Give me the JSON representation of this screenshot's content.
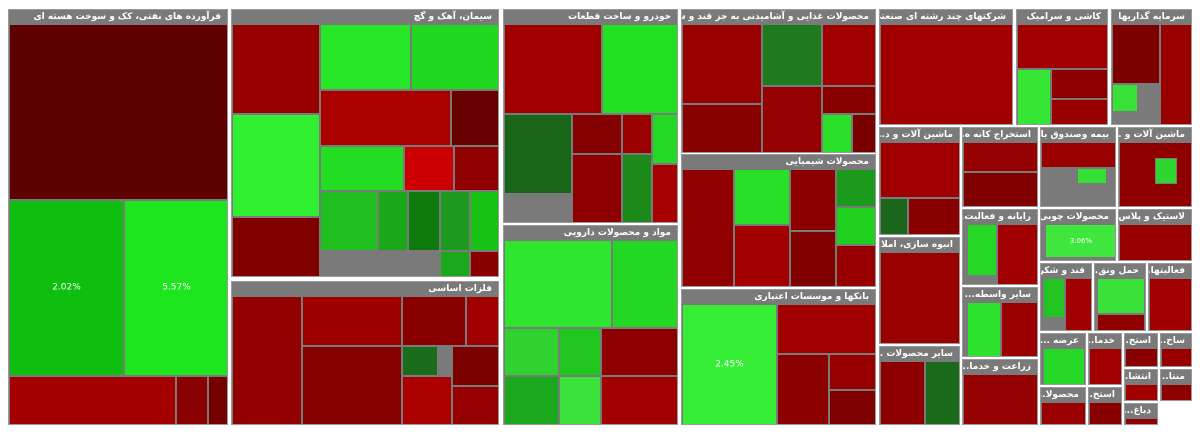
{
  "chart_data": {
    "type": "treemap",
    "sectors": [
      {
        "id": "s1",
        "name": "فرآورده های نفتی، کک و سوخت هسته ای",
        "tiles": [
          {
            "id": "t1",
            "change": "",
            "color": "#5e0000"
          },
          {
            "id": "t2",
            "change": "2.02%",
            "color": "#0fbf0f"
          },
          {
            "id": "t3",
            "change": "5.57%",
            "color": "#1ee61e"
          },
          {
            "id": "t4",
            "change": "",
            "color": "#a50000"
          },
          {
            "id": "t5",
            "change": "",
            "color": "#8b0000"
          },
          {
            "id": "t6",
            "change": "",
            "color": "#750000"
          }
        ]
      },
      {
        "id": "s2",
        "name": "سیمان، آهک و گچ",
        "tiles": [
          {
            "id": "t1",
            "change": "",
            "color": "#980000"
          },
          {
            "id": "t2",
            "change": "",
            "color": "#28e628"
          },
          {
            "id": "t3",
            "change": "",
            "color": "#20d820"
          },
          {
            "id": "t4",
            "change": "",
            "color": "#30ee30"
          },
          {
            "id": "t5",
            "change": "",
            "color": "#aa0000"
          },
          {
            "id": "t6",
            "change": "",
            "color": "#680000"
          },
          {
            "id": "t7",
            "change": "",
            "color": "#22dd22"
          },
          {
            "id": "t8",
            "change": "",
            "color": "#cc0000"
          },
          {
            "id": "t9",
            "change": "",
            "color": "#900000"
          },
          {
            "id": "t10",
            "change": "",
            "color": "#20c020"
          },
          {
            "id": "t11",
            "change": "",
            "color": "#18a818"
          },
          {
            "id": "t12",
            "change": "",
            "color": "#0e7a0e"
          },
          {
            "id": "t13",
            "change": "",
            "color": "#1d9a1d"
          },
          {
            "id": "t14",
            "change": "",
            "color": "#17c217"
          },
          {
            "id": "t15",
            "change": "",
            "color": "#800000"
          },
          {
            "id": "t16",
            "change": "",
            "color": "#1ca81c"
          },
          {
            "id": "t17",
            "change": "",
            "color": "#8a0000"
          }
        ]
      },
      {
        "id": "s3",
        "name": "فلزات اساسی",
        "tiles": [
          {
            "id": "t1",
            "change": "",
            "color": "#920000"
          },
          {
            "id": "t2",
            "change": "",
            "color": "#9e0000"
          },
          {
            "id": "t3",
            "change": "",
            "color": "#8a0000"
          },
          {
            "id": "t4",
            "change": "",
            "color": "#a00000"
          },
          {
            "id": "t5",
            "change": "",
            "color": "#1a6d1a"
          },
          {
            "id": "t6",
            "change": "",
            "color": "#850000"
          },
          {
            "id": "t7",
            "change": "",
            "color": "#aa0000"
          },
          {
            "id": "t8",
            "change": "",
            "color": "#7c0000"
          },
          {
            "id": "t9",
            "change": "",
            "color": "#960000"
          }
        ]
      },
      {
        "id": "s4",
        "name": "خودرو و ساخت قطعات",
        "tiles": [
          {
            "id": "t1",
            "change": "",
            "color": "#a00000"
          },
          {
            "id": "t2",
            "change": "",
            "color": "#22e022"
          },
          {
            "id": "t3",
            "change": "",
            "color": "#196619"
          },
          {
            "id": "t4",
            "change": "",
            "color": "#850000"
          },
          {
            "id": "t5",
            "change": "",
            "color": "#9a0000"
          },
          {
            "id": "t6",
            "change": "",
            "color": "#26d826"
          },
          {
            "id": "t7",
            "change": "",
            "color": "#8e0000"
          },
          {
            "id": "t8",
            "change": "",
            "color": "#1b8a1b"
          },
          {
            "id": "t9",
            "change": "",
            "color": "#a60000"
          }
        ]
      },
      {
        "id": "s5",
        "name": "مواد و محصولات دارویی",
        "tiles": [
          {
            "id": "t1",
            "change": "",
            "color": "#2ee62e"
          },
          {
            "id": "t2",
            "change": "",
            "color": "#22d822"
          },
          {
            "id": "t3",
            "change": "",
            "color": "#2fd22f"
          },
          {
            "id": "t4",
            "change": "",
            "color": "#20c520"
          },
          {
            "id": "t5",
            "change": "",
            "color": "#8e0000"
          },
          {
            "id": "t6",
            "change": "",
            "color": "#1ca81c"
          },
          {
            "id": "t7",
            "change": "",
            "color": "#3be23b"
          },
          {
            "id": "t8",
            "change": "",
            "color": "#a00000"
          }
        ]
      },
      {
        "id": "s6",
        "name": "محصولات غذایی و آشامیدنی به جز قند و شکر",
        "tiles": [
          {
            "id": "t1",
            "change": "",
            "color": "#9a0000"
          },
          {
            "id": "t2",
            "change": "",
            "color": "#1e7a1e"
          },
          {
            "id": "t3",
            "change": "",
            "color": "#a00000"
          },
          {
            "id": "t4",
            "change": "",
            "color": "#880000"
          },
          {
            "id": "t5",
            "change": "",
            "color": "#950000"
          },
          {
            "id": "t6",
            "change": "",
            "color": "#8a0000"
          },
          {
            "id": "t7",
            "change": "",
            "color": "#2be02b"
          },
          {
            "id": "t8",
            "change": "",
            "color": "#7a0000"
          }
        ]
      },
      {
        "id": "s7",
        "name": "محصولات شیمیایی",
        "tiles": [
          {
            "id": "t1",
            "change": "",
            "color": "#900000"
          },
          {
            "id": "t2",
            "change": "",
            "color": "#28e028"
          },
          {
            "id": "t3",
            "change": "",
            "color": "#8c0000"
          },
          {
            "id": "t4",
            "change": "",
            "color": "#1c9a1c"
          },
          {
            "id": "t5",
            "change": "",
            "color": "#a20000"
          },
          {
            "id": "t6",
            "change": "",
            "color": "#800000"
          },
          {
            "id": "t7",
            "change": "",
            "color": "#1fd01f"
          },
          {
            "id": "t8",
            "change": "",
            "color": "#980000"
          }
        ]
      },
      {
        "id": "s8",
        "name": "بانکها و موسسات اعتباری",
        "tiles": [
          {
            "id": "t1",
            "change": "2.45%",
            "color": "#35ee35"
          },
          {
            "id": "t2",
            "change": "",
            "color": "#a00000"
          },
          {
            "id": "t3",
            "change": "",
            "color": "#8c0000"
          },
          {
            "id": "t4",
            "change": "",
            "color": "#980000"
          },
          {
            "id": "t5",
            "change": "",
            "color": "#7e0000"
          },
          {
            "id": "t6",
            "change": "",
            "color": "#a40000"
          }
        ]
      },
      {
        "id": "s9",
        "name": "شرکتهای چند رشته ای صنعتی",
        "tiles": [
          {
            "id": "t1",
            "change": "",
            "color": "#a00000"
          },
          {
            "id": "t2",
            "change": "",
            "color": "#8a0000"
          }
        ]
      },
      {
        "id": "s10",
        "name": "کاشی و سرامیک",
        "tiles": [
          {
            "id": "t1",
            "change": "",
            "color": "#a00000"
          },
          {
            "id": "t2",
            "change": "",
            "color": "#35e635"
          },
          {
            "id": "t3",
            "change": "",
            "color": "#8e0000"
          },
          {
            "id": "t4",
            "change": "",
            "color": "#980000"
          }
        ]
      },
      {
        "id": "s11",
        "name": "سرمایه گذاریها",
        "tiles": [
          {
            "id": "t1",
            "change": "",
            "color": "#7c0000"
          },
          {
            "id": "t2",
            "change": "",
            "color": "#38e038"
          },
          {
            "id": "t3",
            "change": "",
            "color": "#9a0000"
          }
        ]
      },
      {
        "id": "s12",
        "name": "ماشین آلات و د...",
        "tiles": [
          {
            "id": "t1",
            "change": "",
            "color": "#a00000"
          },
          {
            "id": "t2",
            "change": "",
            "color": "#1a661a"
          },
          {
            "id": "t3",
            "change": "",
            "color": "#8a0000"
          }
        ]
      },
      {
        "id": "s13",
        "name": "استخراج کانه ه...",
        "tiles": [
          {
            "id": "t1",
            "change": "",
            "color": "#950000"
          },
          {
            "id": "t2",
            "change": "",
            "color": "#800000"
          }
        ]
      },
      {
        "id": "s14",
        "name": "بیمه وصندوق با...",
        "tiles": [
          {
            "id": "t1",
            "change": "",
            "color": "#9a0000"
          },
          {
            "id": "t2",
            "change": "",
            "color": "#34e034"
          }
        ]
      },
      {
        "id": "s15",
        "name": "ماشین آلات و ...",
        "tiles": [
          {
            "id": "t1",
            "change": "",
            "color": "#8e0000"
          },
          {
            "id": "t2",
            "change": "",
            "color": "#2fd62f"
          }
        ]
      },
      {
        "id": "s16",
        "name": "رایانه و فعالیت...",
        "tiles": [
          {
            "id": "t1",
            "change": "",
            "color": "#26d826"
          },
          {
            "id": "t2",
            "change": "",
            "color": "#a00000"
          }
        ]
      },
      {
        "id": "s17",
        "name": "محصولات چوبی",
        "tiles": [
          {
            "id": "t1",
            "change": "3.06%",
            "color": "#3ee63e"
          }
        ]
      },
      {
        "id": "s18",
        "name": "لاستیک و پلاس...",
        "tiles": [
          {
            "id": "t1",
            "change": "",
            "color": "#980000"
          }
        ]
      },
      {
        "id": "s19",
        "name": "انبوه سازی، املا...",
        "tiles": [
          {
            "id": "t1",
            "change": "",
            "color": "#9a0000"
          }
        ]
      },
      {
        "id": "s20",
        "name": "قند و شکر",
        "tiles": [
          {
            "id": "t1",
            "change": "",
            "color": "#22c422"
          },
          {
            "id": "t2",
            "change": "",
            "color": "#a00000"
          }
        ]
      },
      {
        "id": "s21",
        "name": "حمل ونق...",
        "tiles": [
          {
            "id": "t1",
            "change": "",
            "color": "#38e038"
          },
          {
            "id": "t2",
            "change": "",
            "color": "#900000"
          }
        ]
      },
      {
        "id": "s22",
        "name": "فعالیتها...",
        "tiles": [
          {
            "id": "t1",
            "change": "",
            "color": "#a00000"
          }
        ]
      },
      {
        "id": "s23",
        "name": "سایر واسطه...",
        "tiles": [
          {
            "id": "t1",
            "change": "",
            "color": "#2de22d"
          },
          {
            "id": "t2",
            "change": "",
            "color": "#9a0000"
          }
        ]
      },
      {
        "id": "s24",
        "name": "سایر محصولات ...",
        "tiles": [
          {
            "id": "t1",
            "change": "",
            "color": "#8e0000"
          },
          {
            "id": "t2",
            "change": "",
            "color": "#1a6a1a"
          }
        ]
      },
      {
        "id": "s25",
        "name": "زراعت و خدما...",
        "tiles": [
          {
            "id": "t1",
            "change": "",
            "color": "#950000"
          }
        ]
      },
      {
        "id": "s26",
        "name": "عرضه ...",
        "tiles": [
          {
            "id": "t1",
            "change": "",
            "color": "#28d828"
          }
        ]
      },
      {
        "id": "s27",
        "name": "خدما...",
        "tiles": [
          {
            "id": "t1",
            "change": "",
            "color": "#a00000"
          }
        ]
      },
      {
        "id": "s28",
        "name": "استخ...",
        "tiles": [
          {
            "id": "t1",
            "change": "",
            "color": "#8a0000"
          }
        ]
      },
      {
        "id": "s29",
        "name": "ساخ...",
        "tiles": [
          {
            "id": "t1",
            "change": "",
            "color": "#980000"
          }
        ]
      },
      {
        "id": "s30",
        "name": "انتشا...",
        "tiles": [
          {
            "id": "t1",
            "change": "",
            "color": "#a00000"
          }
        ]
      },
      {
        "id": "s31",
        "name": "منتا...",
        "tiles": [
          {
            "id": "t1",
            "change": "",
            "color": "#8e0000"
          }
        ]
      },
      {
        "id": "s32",
        "name": "محصولا...",
        "tiles": [
          {
            "id": "t1",
            "change": "",
            "color": "#9a0000"
          }
        ]
      },
      {
        "id": "s33",
        "name": "استخ...",
        "tiles": [
          {
            "id": "t1",
            "change": "",
            "color": "#880000"
          }
        ]
      },
      {
        "id": "s34",
        "name": "دباغ...",
        "tiles": [
          {
            "id": "t1",
            "change": "",
            "color": "#920000"
          }
        ]
      }
    ]
  }
}
